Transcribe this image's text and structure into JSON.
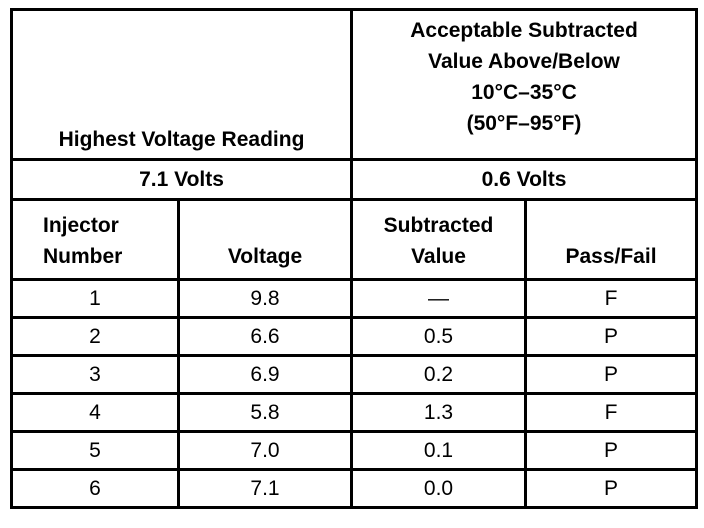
{
  "table": {
    "header": {
      "left": "Highest Voltage Reading",
      "right": [
        "Acceptable Subtracted",
        "Value Above/Below",
        "10°C–35°C",
        "(50°F–95°F)"
      ]
    },
    "limits": [
      "7.1 Volts",
      "0.6 Volts"
    ],
    "columns": [
      [
        "Injector",
        "Number"
      ],
      [
        "Voltage"
      ],
      [
        "Subtracted",
        "Value"
      ],
      [
        "Pass/Fail"
      ]
    ],
    "rows": [
      [
        "1",
        "9.8",
        "—",
        "F"
      ],
      [
        "2",
        "6.6",
        "0.5",
        "P"
      ],
      [
        "3",
        "6.9",
        "0.2",
        "P"
      ],
      [
        "4",
        "5.8",
        "1.3",
        "F"
      ],
      [
        "5",
        "7.0",
        "0.1",
        "P"
      ],
      [
        "6",
        "7.1",
        "0.0",
        "P"
      ]
    ]
  }
}
